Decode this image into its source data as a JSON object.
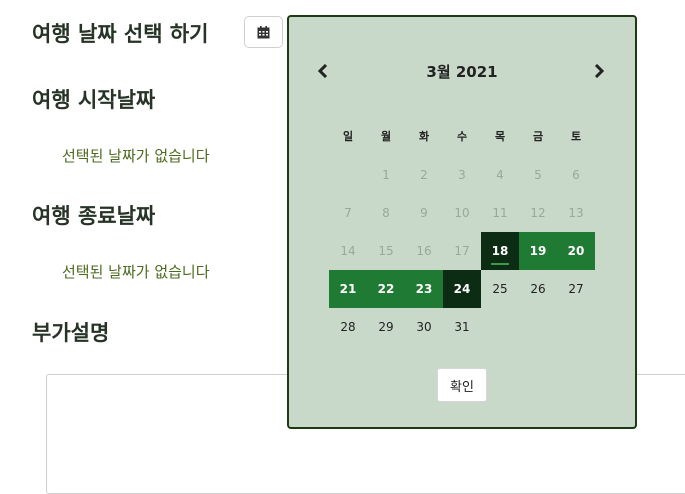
{
  "headings": {
    "select_dates": "여행 날짜 선택 하기",
    "start_date": "여행 시작날짜",
    "end_date": "여행 종료날짜",
    "extra": "부가설명"
  },
  "start_date_value": "선택된 날짜가 없습니다",
  "end_date_value": "선택된 날짜가 없습니다",
  "calendar_button_icon": "calendar-icon",
  "datepicker": {
    "title": "3월 2021",
    "prev_icon": "chevron-left-icon",
    "next_icon": "chevron-right-icon",
    "weekdays": [
      "일",
      "월",
      "화",
      "수",
      "목",
      "금",
      "토"
    ],
    "weeks": [
      [
        {
          "d": ""
        },
        {
          "d": "1",
          "s": "disabled"
        },
        {
          "d": "2",
          "s": "disabled"
        },
        {
          "d": "3",
          "s": "disabled"
        },
        {
          "d": "4",
          "s": "disabled"
        },
        {
          "d": "5",
          "s": "disabled"
        },
        {
          "d": "6",
          "s": "disabled"
        }
      ],
      [
        {
          "d": "7",
          "s": "disabled"
        },
        {
          "d": "8",
          "s": "disabled"
        },
        {
          "d": "9",
          "s": "disabled"
        },
        {
          "d": "10",
          "s": "disabled"
        },
        {
          "d": "11",
          "s": "disabled"
        },
        {
          "d": "12",
          "s": "disabled"
        },
        {
          "d": "13",
          "s": "disabled"
        }
      ],
      [
        {
          "d": "14",
          "s": "disabled"
        },
        {
          "d": "15",
          "s": "disabled"
        },
        {
          "d": "16",
          "s": "disabled"
        },
        {
          "d": "17",
          "s": "disabled"
        },
        {
          "d": "18",
          "s": "selected today"
        },
        {
          "d": "19",
          "s": "range"
        },
        {
          "d": "20",
          "s": "range"
        }
      ],
      [
        {
          "d": "21",
          "s": "range"
        },
        {
          "d": "22",
          "s": "range"
        },
        {
          "d": "23",
          "s": "range"
        },
        {
          "d": "24",
          "s": "selected"
        },
        {
          "d": "25"
        },
        {
          "d": "26"
        },
        {
          "d": "27"
        }
      ],
      [
        {
          "d": "28"
        },
        {
          "d": "29"
        },
        {
          "d": "30"
        },
        {
          "d": "31"
        },
        {
          "d": ""
        },
        {
          "d": ""
        },
        {
          "d": ""
        }
      ]
    ],
    "confirm_label": "확인"
  },
  "colors": {
    "picker_bg": "#c9d9c9",
    "picker_border": "#1e3a12",
    "range": "#1f7a34",
    "selected": "#0c2c14",
    "subtext": "#4d6b1f"
  }
}
